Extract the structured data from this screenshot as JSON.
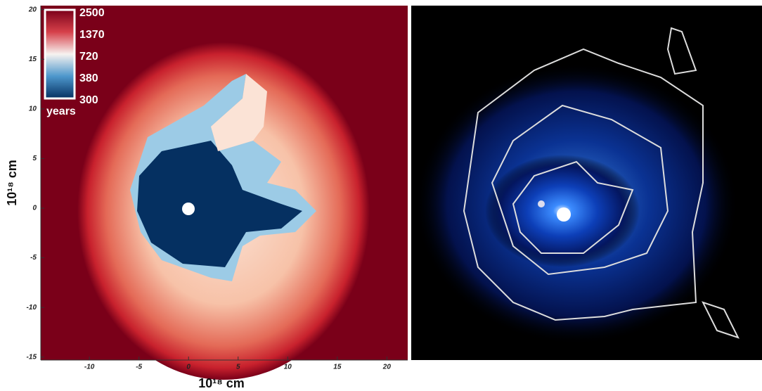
{
  "chart_data": {
    "type": "image",
    "xlabel": "10¹⁸ cm",
    "ylabel": "10¹⁸ cm",
    "xlim": [
      -14.9,
      22.1
    ],
    "ylim": [
      -15.3,
      20.4
    ],
    "xticks": [
      -10,
      -5,
      0,
      5,
      10,
      15,
      20
    ],
    "yticks": [
      -15,
      -10,
      -5,
      0,
      5,
      10,
      15,
      20
    ],
    "colorbar": {
      "ticks": [
        2500,
        1370,
        720,
        380,
        300
      ],
      "label": "years"
    }
  }
}
